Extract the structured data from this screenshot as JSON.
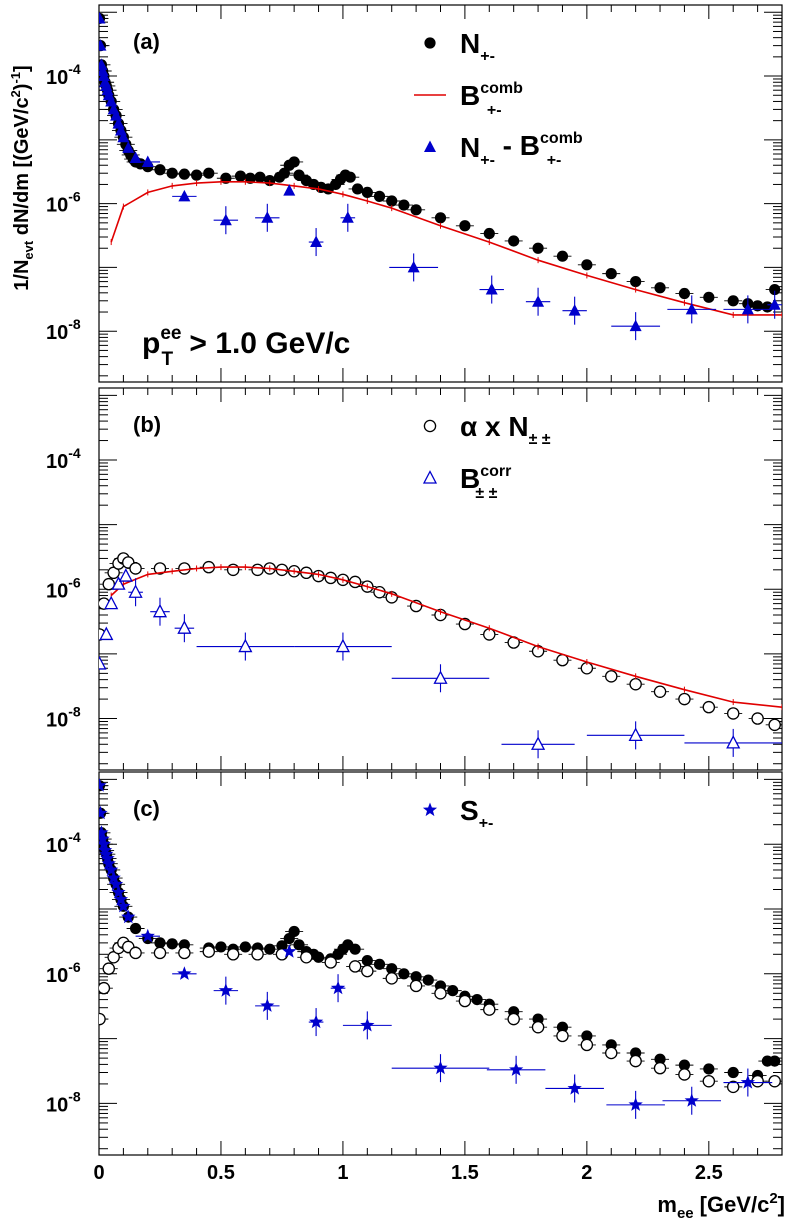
{
  "chart_data": {
    "type": "scatter",
    "yscale": "log",
    "shared_x": {
      "label_main": "m",
      "label_sub": "ee",
      "label_unit": "[GeV/c",
      "label_sup": "2",
      "label_close": "]",
      "xlim": [
        0,
        2.8
      ],
      "ticks": [
        0,
        0.5,
        1,
        1.5,
        2,
        2.5
      ],
      "tick_labels": [
        "0",
        "0.5",
        "1",
        "1.5",
        "2",
        "2.5"
      ]
    },
    "y_axis_label": "1/N_evt dN/dm [(GeV/c^2)^-1]",
    "y_label_parts": {
      "a": "1/N",
      "b": "evt",
      "c": " dN/dm [(GeV/c",
      "d": "2",
      "e": ")",
      "f": "-1",
      "g": "]"
    },
    "ylim": [
      1.6e-09,
      0.0013
    ],
    "y_tick_labels": [
      {
        "base": "10",
        "exp": "-4",
        "value": 0.0001
      },
      {
        "base": "10",
        "exp": "-6",
        "value": 1e-06
      },
      {
        "base": "10",
        "exp": "-8",
        "value": 1e-08
      }
    ],
    "panels": [
      {
        "id": "a",
        "label": "(a)",
        "annotation": {
          "main": "p",
          "sup": "ee",
          "sub": "T",
          "rest": " > 1.0 GeV/c"
        },
        "legend": [
          {
            "key": "N",
            "marker": "filled-circle",
            "main": "N",
            "sub": "+-",
            "sup": ""
          },
          {
            "key": "B",
            "marker": "red-line",
            "main": "B",
            "sub": "+-",
            "sup": "comb"
          },
          {
            "key": "D",
            "marker": "filled-triangle",
            "main": "N",
            "sub": "+-",
            "sup": "",
            "main2": " - B",
            "sub2": "+-",
            "sup2": "comb"
          }
        ],
        "series": [
          {
            "name": "N+-",
            "marker": "filled-circle",
            "color": "#000000",
            "x": [
              0.002,
              0.006,
              0.01,
              0.015,
              0.02,
              0.025,
              0.03,
              0.035,
              0.04,
              0.05,
              0.06,
              0.07,
              0.08,
              0.09,
              0.1,
              0.11,
              0.12,
              0.13,
              0.14,
              0.15,
              0.17,
              0.2,
              0.25,
              0.3,
              0.35,
              0.4,
              0.45,
              0.52,
              0.58,
              0.62,
              0.66,
              0.7,
              0.74,
              0.76,
              0.78,
              0.8,
              0.82,
              0.85,
              0.88,
              0.91,
              0.94,
              0.97,
              0.99,
              1.01,
              1.03,
              1.06,
              1.1,
              1.15,
              1.2,
              1.25,
              1.3,
              1.4,
              1.5,
              1.6,
              1.7,
              1.8,
              1.9,
              2.0,
              2.1,
              2.2,
              2.3,
              2.4,
              2.5,
              2.6,
              2.66,
              2.7,
              2.74,
              2.77
            ],
            "y": [
              0.0008,
              0.0003,
              0.00015,
              0.00012,
              0.0001,
              8e-05,
              7e-05,
              6e-05,
              5e-05,
              4e-05,
              3e-05,
              2.4e-05,
              1.8e-05,
              1.4e-05,
              1.1e-05,
              8.5e-06,
              6.8e-06,
              5.8e-06,
              5e-06,
              4.5e-06,
              4.2e-06,
              3.8e-06,
              3.4e-06,
              3e-06,
              2.9e-06,
              2.8e-06,
              3e-06,
              2.5e-06,
              2.7e-06,
              2.5e-06,
              2.6e-06,
              2.3e-06,
              2.6e-06,
              3e-06,
              4e-06,
              4.5e-06,
              2.8e-06,
              2.3e-06,
              2e-06,
              1.8e-06,
              1.7e-06,
              2e-06,
              2.4e-06,
              2.8e-06,
              2.6e-06,
              1.7e-06,
              1.5e-06,
              1.3e-06,
              1.1e-06,
              9.5e-07,
              8e-07,
              6e-07,
              4.5e-07,
              3.4e-07,
              2.6e-07,
              2e-07,
              1.5e-07,
              1.1e-07,
              8e-08,
              6e-08,
              4.8e-08,
              3.9e-08,
              3.4e-08,
              3e-08,
              2.7e-08,
              2.5e-08,
              2.4e-08,
              4.5e-08
            ]
          },
          {
            "name": "B+-comb",
            "marker": "red-line",
            "color": "#e00000",
            "x": [
              0.05,
              0.1,
              0.2,
              0.3,
              0.4,
              0.5,
              0.6,
              0.7,
              0.8,
              0.9,
              1.0,
              1.1,
              1.2,
              1.4,
              1.6,
              1.8,
              2.0,
              2.2,
              2.4,
              2.6,
              2.8
            ],
            "y": [
              2.5e-07,
              9e-07,
              1.5e-06,
              1.9e-06,
              2.1e-06,
              2.2e-06,
              2.2e-06,
              2.1e-06,
              1.9e-06,
              1.7e-06,
              1.4e-06,
              1.1e-06,
              8.5e-07,
              4.5e-07,
              2.5e-07,
              1.3e-07,
              7.5e-08,
              4.5e-08,
              2.8e-08,
              1.8e-08,
              1.8e-08
            ]
          },
          {
            "name": "N+- - B+-comb",
            "marker": "filled-triangle",
            "color": "#0000cc",
            "x": [
              0.002,
              0.006,
              0.01,
              0.015,
              0.02,
              0.025,
              0.03,
              0.035,
              0.04,
              0.05,
              0.06,
              0.07,
              0.08,
              0.09,
              0.1,
              0.12,
              0.15,
              0.2,
              0.35,
              0.52,
              0.69,
              0.78,
              0.89,
              1.02,
              1.29,
              1.61,
              1.8,
              1.95,
              2.2,
              2.43,
              2.66,
              2.77
            ],
            "y": [
              0.0008,
              0.0003,
              0.00015,
              0.00012,
              0.0001,
              8e-05,
              7e-05,
              6e-05,
              5e-05,
              4e-05,
              3e-05,
              2.4e-05,
              1.8e-05,
              1.4e-05,
              1.1e-05,
              7.5e-06,
              5.2e-06,
              4.5e-06,
              1.3e-06,
              5.5e-07,
              6e-07,
              1.6e-06,
              2.5e-07,
              6e-07,
              1e-07,
              4.5e-08,
              2.9e-08,
              2.1e-08,
              1.2e-08,
              2.2e-08,
              2.2e-08,
              2.6e-08
            ],
            "xerr": [
              0,
              0,
              0,
              0,
              0,
              0,
              0,
              0,
              0,
              0,
              0,
              0,
              0,
              0,
              0,
              0,
              0,
              0.05,
              0.05,
              0.05,
              0.05,
              0,
              0.03,
              0.03,
              0.1,
              0.05,
              0.05,
              0.05,
              0.1,
              0.1,
              0.1,
              0.03
            ]
          }
        ]
      },
      {
        "id": "b",
        "label": "(b)",
        "legend": [
          {
            "key": "N",
            "marker": "open-circle",
            "main": "α x N",
            "sub": "± ±",
            "sup": ""
          },
          {
            "key": "B",
            "marker": "open-triangle",
            "main": "B",
            "sub": "± ±",
            "sup": "corr"
          }
        ],
        "series": [
          {
            "name": "alpha x N±±",
            "marker": "open-circle",
            "color": "#000000",
            "x": [
              0.002,
              0.02,
              0.04,
              0.06,
              0.08,
              0.1,
              0.12,
              0.15,
              0.25,
              0.35,
              0.45,
              0.55,
              0.65,
              0.7,
              0.75,
              0.8,
              0.85,
              0.9,
              0.95,
              1.0,
              1.05,
              1.1,
              1.15,
              1.2,
              1.3,
              1.4,
              1.5,
              1.6,
              1.7,
              1.8,
              1.9,
              2.0,
              2.1,
              2.2,
              2.3,
              2.4,
              2.5,
              2.6,
              2.7,
              2.77
            ],
            "y": [
              2e-07,
              6e-07,
              1.2e-06,
              1.8e-06,
              2.5e-06,
              3e-06,
              2.6e-06,
              2.1e-06,
              2.1e-06,
              2.1e-06,
              2.2e-06,
              2e-06,
              2e-06,
              2.1e-06,
              2e-06,
              1.9e-06,
              1.8e-06,
              1.6e-06,
              1.5e-06,
              1.4e-06,
              1.3e-06,
              1.1e-06,
              9e-07,
              7.5e-07,
              5.5e-07,
              4e-07,
              2.9e-07,
              2e-07,
              1.5e-07,
              1.1e-07,
              8e-08,
              6e-08,
              4.5e-08,
              3.4e-08,
              2.6e-08,
              2e-08,
              1.5e-08,
              1.2e-08,
              1e-08,
              8e-09
            ]
          },
          {
            "name": "B±±corr",
            "marker": "red-line",
            "color": "#e00000",
            "x": [
              0.05,
              0.1,
              0.2,
              0.3,
              0.4,
              0.5,
              0.6,
              0.7,
              0.8,
              0.9,
              1.0,
              1.1,
              1.2,
              1.4,
              1.6,
              1.8,
              2.0,
              2.2,
              2.4,
              2.6,
              2.8
            ],
            "y": [
              8e-07,
              1.2e-06,
              1.7e-06,
              1.9e-06,
              2.1e-06,
              2.2e-06,
              2.2e-06,
              2.1e-06,
              1.9e-06,
              1.7e-06,
              1.4e-06,
              1.1e-06,
              8.5e-07,
              4.5e-07,
              2.5e-07,
              1.3e-07,
              7.5e-08,
              4.5e-08,
              2.8e-08,
              1.8e-08,
              1.5e-08
            ]
          },
          {
            "name": "B±±corr points",
            "marker": "open-triangle",
            "color": "#0000cc",
            "x": [
              0.002,
              0.03,
              0.05,
              0.08,
              0.11,
              0.15,
              0.25,
              0.35,
              0.6,
              1.0,
              1.4,
              1.8,
              2.2,
              2.6
            ],
            "y": [
              7e-08,
              2e-07,
              6e-07,
              1.2e-06,
              1.6e-06,
              9e-07,
              4.5e-07,
              2.5e-07,
              1.3e-07,
              1.3e-07,
              4.2e-08,
              4e-09,
              5.5e-09,
              4.2e-09
            ],
            "xerr": [
              0,
              0,
              0,
              0,
              0,
              0.03,
              0.04,
              0.04,
              0.2,
              0.2,
              0.2,
              0.15,
              0.2,
              0.2
            ]
          }
        ]
      },
      {
        "id": "c",
        "label": "(c)",
        "legend": [
          {
            "key": "S",
            "marker": "star",
            "main": "S",
            "sub": "+-",
            "sup": ""
          }
        ],
        "series": [
          {
            "name": "N+- (c)",
            "marker": "filled-circle",
            "color": "#000000",
            "x": [
              0.002,
              0.006,
              0.01,
              0.015,
              0.02,
              0.025,
              0.03,
              0.035,
              0.04,
              0.05,
              0.06,
              0.07,
              0.08,
              0.09,
              0.1,
              0.12,
              0.15,
              0.2,
              0.25,
              0.3,
              0.35,
              0.45,
              0.5,
              0.55,
              0.6,
              0.65,
              0.7,
              0.75,
              0.78,
              0.8,
              0.82,
              0.85,
              0.88,
              0.9,
              0.95,
              0.98,
              1.0,
              1.02,
              1.05,
              1.1,
              1.15,
              1.2,
              1.25,
              1.3,
              1.35,
              1.4,
              1.45,
              1.5,
              1.55,
              1.6,
              1.7,
              1.8,
              1.9,
              2.0,
              2.1,
              2.2,
              2.3,
              2.4,
              2.5,
              2.6,
              2.7,
              2.74,
              2.77
            ],
            "y": [
              0.0008,
              0.0003,
              0.00015,
              0.00012,
              0.0001,
              8e-05,
              7e-05,
              6e-05,
              5e-05,
              4e-05,
              3e-05,
              2.4e-05,
              1.8e-05,
              1.4e-05,
              1.1e-05,
              7.5e-06,
              5e-06,
              3.5e-06,
              3e-06,
              2.9e-06,
              2.8e-06,
              2.5e-06,
              2.6e-06,
              2.4e-06,
              2.6e-06,
              2.5e-06,
              2.4e-06,
              2.7e-06,
              3.5e-06,
              4.5e-06,
              2.8e-06,
              2.2e-06,
              2e-06,
              1.8e-06,
              1.7e-06,
              2e-06,
              2.4e-06,
              2.8e-06,
              2.4e-06,
              1.6e-06,
              1.4e-06,
              1.2e-06,
              1e-06,
              9e-07,
              8e-07,
              6.5e-07,
              5.5e-07,
              4.5e-07,
              4e-07,
              3.4e-07,
              2.6e-07,
              2e-07,
              1.5e-07,
              1.1e-07,
              8e-08,
              6e-08,
              4.8e-08,
              3.9e-08,
              3.4e-08,
              3e-08,
              2.7e-08,
              4.5e-08,
              4.5e-08
            ]
          },
          {
            "name": "alpha x N±± (c)",
            "marker": "open-circle",
            "color": "#000000",
            "x": [
              0.002,
              0.02,
              0.04,
              0.06,
              0.08,
              0.1,
              0.12,
              0.15,
              0.25,
              0.35,
              0.45,
              0.55,
              0.65,
              0.75,
              0.85,
              0.95,
              1.05,
              1.1,
              1.2,
              1.3,
              1.4,
              1.5,
              1.6,
              1.7,
              1.8,
              1.9,
              2.0,
              2.1,
              2.2,
              2.3,
              2.4,
              2.5,
              2.6,
              2.7,
              2.77
            ],
            "y": [
              2e-07,
              6e-07,
              1.2e-06,
              1.8e-06,
              2.5e-06,
              3e-06,
              2.6e-06,
              2.1e-06,
              2.1e-06,
              2.1e-06,
              2.2e-06,
              2e-06,
              2e-06,
              2e-06,
              1.8e-06,
              1.5e-06,
              1.3e-06,
              1.1e-06,
              8.5e-07,
              6.5e-07,
              5e-07,
              3.8e-07,
              2.8e-07,
              2e-07,
              1.5e-07,
              1.1e-07,
              8e-08,
              6e-08,
              4.5e-08,
              3.5e-08,
              2.8e-08,
              2.2e-08,
              1.8e-08,
              2.2e-08,
              2.2e-08
            ]
          },
          {
            "name": "S+-",
            "marker": "star",
            "color": "#0000cc",
            "x": [
              0.002,
              0.006,
              0.01,
              0.015,
              0.02,
              0.025,
              0.03,
              0.035,
              0.04,
              0.05,
              0.06,
              0.07,
              0.08,
              0.09,
              0.1,
              0.12,
              0.2,
              0.35,
              0.52,
              0.69,
              0.78,
              0.89,
              0.98,
              1.1,
              1.4,
              1.71,
              1.95,
              2.2,
              2.43,
              2.66
            ],
            "y": [
              0.0008,
              0.0003,
              0.00015,
              0.00012,
              0.0001,
              8e-05,
              7e-05,
              6e-05,
              5e-05,
              4e-05,
              3e-05,
              2.4e-05,
              1.8e-05,
              1.4e-05,
              1.1e-05,
              7.5e-06,
              3.8e-06,
              1e-06,
              5.5e-07,
              3.2e-07,
              2.2e-06,
              1.8e-07,
              6e-07,
              1.6e-07,
              3.5e-08,
              3.3e-08,
              1.7e-08,
              9.5e-09,
              1.1e-08,
              2.1e-08
            ],
            "xerr": [
              0,
              0,
              0,
              0,
              0,
              0,
              0,
              0,
              0,
              0,
              0,
              0,
              0,
              0,
              0,
              0,
              0.05,
              0.05,
              0.05,
              0.05,
              0,
              0.03,
              0.03,
              0.1,
              0.2,
              0.12,
              0.12,
              0.12,
              0.12,
              0.1
            ]
          }
        ]
      }
    ]
  }
}
